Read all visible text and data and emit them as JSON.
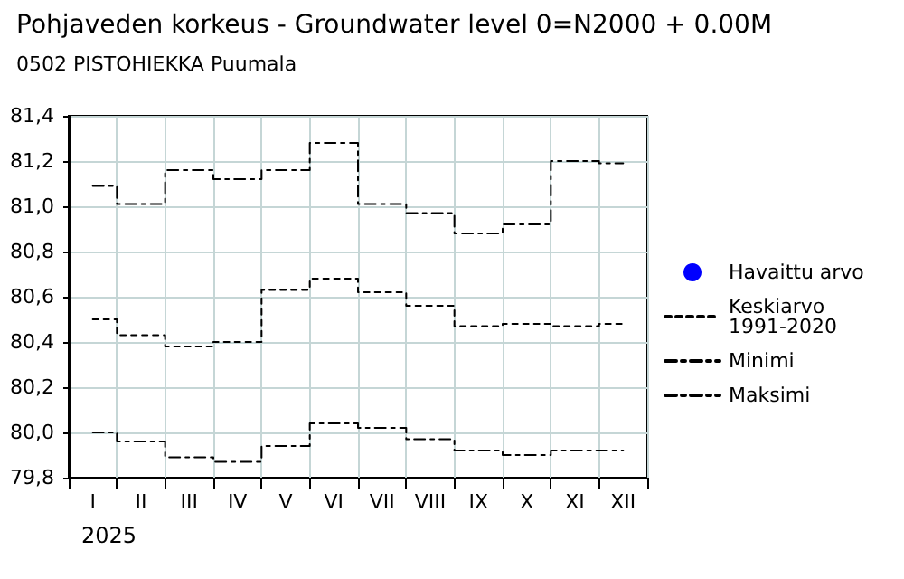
{
  "chart_data": {
    "type": "step",
    "title": "Pohjaveden korkeus - Groundwater level 0=N2000 + 0.00M",
    "subtitle": "0502 PISTOHIEKKA Puumala",
    "xlabel": "2025",
    "categories": [
      "I",
      "II",
      "III",
      "IV",
      "V",
      "VI",
      "VII",
      "VIII",
      "IX",
      "X",
      "XI",
      "XII"
    ],
    "series": [
      {
        "name": "Havaittu arvo",
        "color": "#0000ff",
        "marker": "circle",
        "line_style": "solid",
        "values": [
          null,
          null,
          null,
          null,
          null,
          null,
          null,
          null,
          null,
          null,
          null,
          null
        ]
      },
      {
        "name": "Keskiarvo\n1991-2020",
        "color": "#000000",
        "line_style": "dotted",
        "values": [
          80.5,
          80.43,
          80.38,
          80.4,
          80.63,
          80.68,
          80.62,
          80.56,
          80.47,
          80.48,
          80.47,
          80.48
        ]
      },
      {
        "name": "Minimi",
        "color": "#000000",
        "line_style": "dashed",
        "values": [
          80.0,
          79.96,
          79.89,
          79.87,
          79.94,
          80.04,
          80.02,
          79.97,
          79.92,
          79.9,
          79.92,
          79.92
        ]
      },
      {
        "name": "Maksimi",
        "color": "#000000",
        "line_style": "dashed",
        "values": [
          81.09,
          81.01,
          81.16,
          81.12,
          81.16,
          81.28,
          81.01,
          80.97,
          80.88,
          80.92,
          81.2,
          81.19
        ]
      }
    ],
    "ylim": [
      79.8,
      81.4
    ],
    "yticks": [
      {
        "value": 79.8,
        "label": "79,8"
      },
      {
        "value": 80.0,
        "label": "80,0"
      },
      {
        "value": 80.2,
        "label": "80,2"
      },
      {
        "value": 80.4,
        "label": "80,4"
      },
      {
        "value": 80.6,
        "label": "80,6"
      },
      {
        "value": 80.8,
        "label": "80,8"
      },
      {
        "value": 81.0,
        "label": "81,0"
      },
      {
        "value": 81.2,
        "label": "81,2"
      },
      {
        "value": 81.4,
        "label": "81,4"
      }
    ],
    "grid": true,
    "legend": "right"
  }
}
